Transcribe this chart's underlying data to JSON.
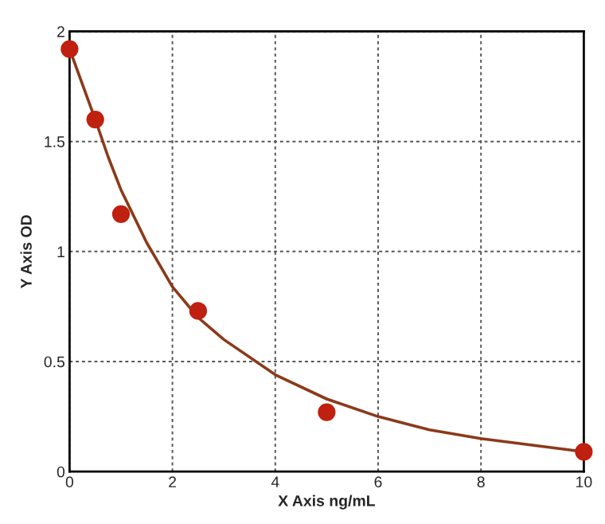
{
  "chart_data": {
    "type": "scatter",
    "xlabel": "X Axis ng/mL",
    "ylabel": "Y Axis OD",
    "xlim": [
      0,
      10
    ],
    "ylim": [
      0,
      2
    ],
    "xticks": [
      0,
      2,
      4,
      6,
      8,
      10
    ],
    "yticks": [
      0,
      0.5,
      1,
      1.5,
      2
    ],
    "grid": true,
    "series": [
      {
        "color": "#c0200f",
        "marker": "circle",
        "x": [
          0,
          0.5,
          1,
          2.5,
          5,
          10
        ],
        "values": [
          1.92,
          1.6,
          1.17,
          0.73,
          0.27,
          0.09
        ]
      },
      {
        "type": "line",
        "color": "#8b3a1a",
        "line_style": "solid",
        "x": [
          0,
          0.25,
          0.5,
          0.75,
          1,
          1.5,
          2,
          2.5,
          3,
          4,
          5,
          6,
          7,
          8,
          9,
          10
        ],
        "values": [
          1.92,
          1.76,
          1.6,
          1.43,
          1.28,
          1.04,
          0.84,
          0.7,
          0.6,
          0.44,
          0.33,
          0.25,
          0.19,
          0.15,
          0.12,
          0.09
        ]
      }
    ]
  }
}
